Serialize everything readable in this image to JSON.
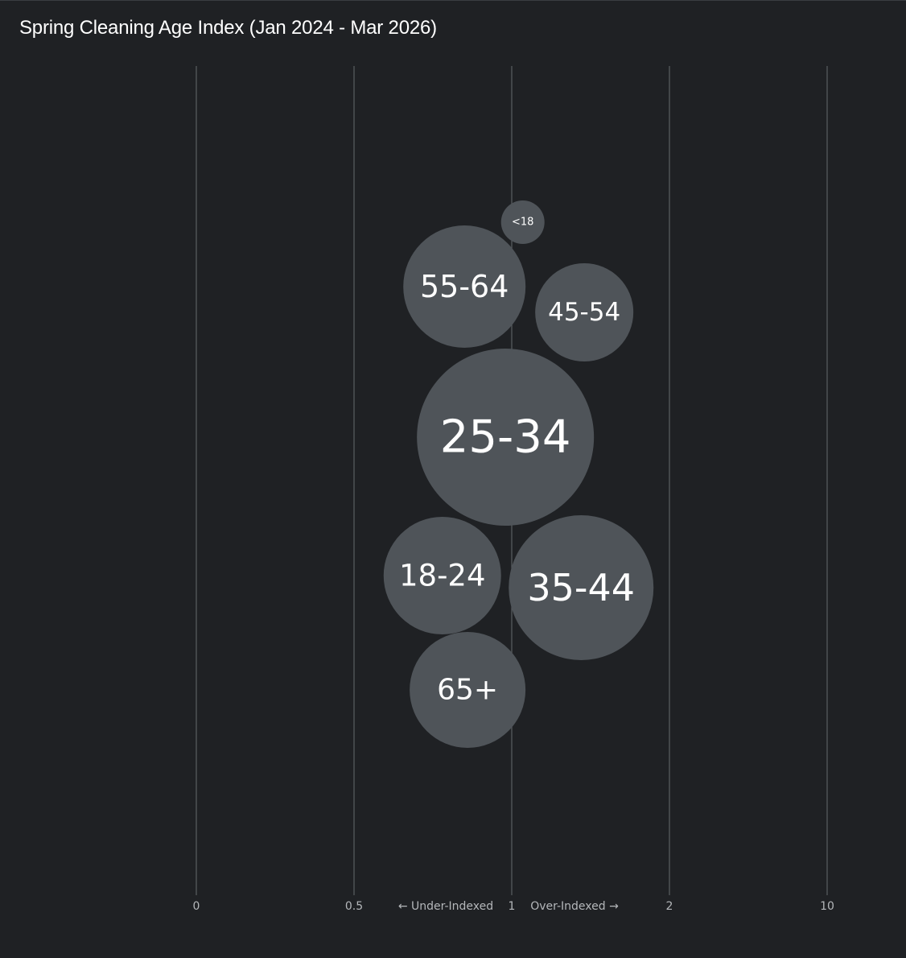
{
  "chart_data": {
    "type": "scatter",
    "title": "Spring Cleaning Age Index (Jan 2024 - Mar 2026)",
    "x_scale": "log",
    "x_ticks": [
      {
        "value": 0,
        "label": "0"
      },
      {
        "value": 0.5,
        "label": "0.5"
      },
      {
        "value": 1,
        "label": "1"
      },
      {
        "value": 2,
        "label": "2"
      },
      {
        "value": 10,
        "label": "10"
      }
    ],
    "annotations": {
      "under": "← Under-Indexed",
      "over": "Over-Indexed →"
    },
    "grid": true,
    "bubble_color": "#4f5459",
    "points": [
      {
        "label": "<18",
        "index": 1.07
      },
      {
        "label": "55-64",
        "index": 0.85
      },
      {
        "label": "45-54",
        "index": 1.46
      },
      {
        "label": "25-34",
        "index": 0.98
      },
      {
        "label": "18-24",
        "index": 0.78
      },
      {
        "label": "35-44",
        "index": 1.44
      },
      {
        "label": "65+",
        "index": 0.86
      }
    ]
  }
}
